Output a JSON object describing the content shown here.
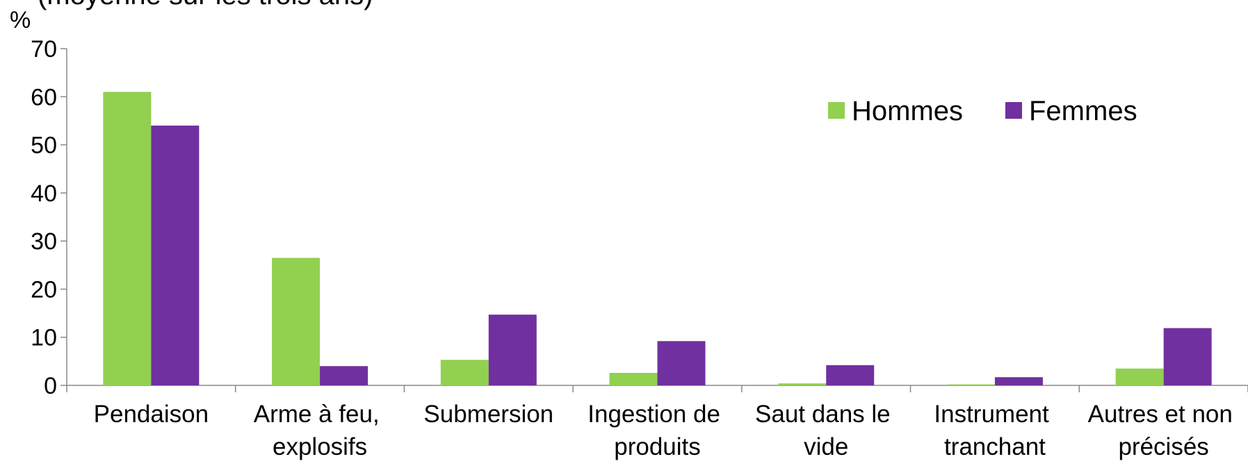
{
  "chart_data": {
    "type": "bar",
    "subtitle": "(moyenne sur les trois ans)",
    "y_label": "%",
    "categories": [
      "Pendaison",
      "Arme à feu, explosifs",
      "Submersion",
      "Ingestion de produits",
      "Saut dans le vide",
      "Instrument tranchant",
      "Autres et non précisés"
    ],
    "series": [
      {
        "name": "Hommes",
        "color": "#92d050",
        "values": [
          61,
          26.5,
          5.3,
          2.6,
          0.4,
          0.2,
          3.5
        ]
      },
      {
        "name": "Femmes",
        "color": "#7030a0",
        "values": [
          54,
          4,
          14.7,
          9.2,
          4.2,
          1.7,
          11.9
        ]
      }
    ],
    "ylim": [
      0,
      70
    ],
    "yticks": [
      0,
      10,
      20,
      30,
      40,
      50,
      60,
      70
    ],
    "legend": "top-right",
    "grid": false
  }
}
